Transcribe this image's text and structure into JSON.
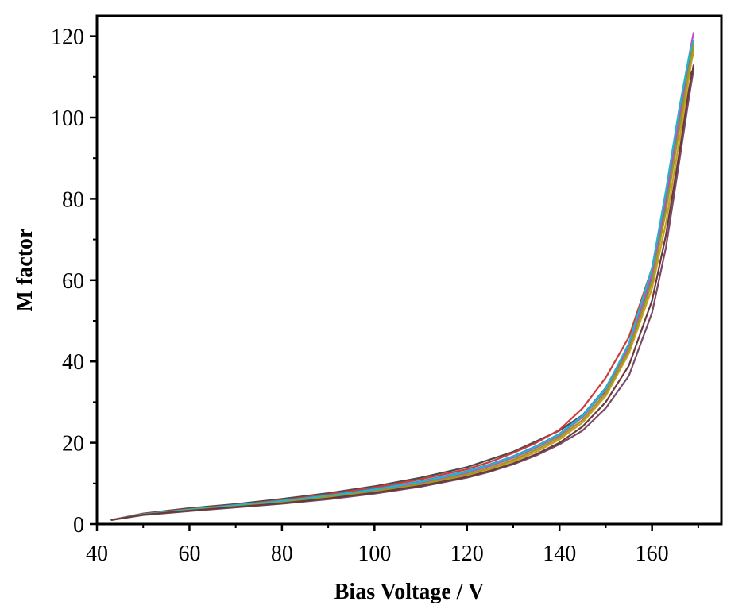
{
  "chart_data": {
    "type": "line",
    "title": "",
    "xlabel": "Bias Voltage  / V",
    "ylabel": "M factor",
    "xlim": [
      40,
      175
    ],
    "ylim": [
      0,
      125
    ],
    "xticks": [
      40,
      60,
      80,
      100,
      120,
      140,
      160
    ],
    "yticks": [
      0,
      20,
      40,
      60,
      80,
      100,
      120
    ],
    "grid": false,
    "legend": "none",
    "series": [
      {
        "color": "#4a4a4a",
        "x": [
          43,
          50,
          60,
          70,
          80,
          90,
          100,
          110,
          120,
          125,
          130,
          135,
          140,
          145,
          150,
          155,
          160,
          163,
          166,
          168,
          169
        ],
        "y": [
          1.0,
          2.6,
          3.9,
          4.9,
          6.2,
          7.6,
          9.3,
          11.4,
          14.0,
          15.9,
          17.8,
          20.4,
          23.0,
          26.8,
          32.8,
          44.0,
          61.0,
          78.0,
          98.0,
          110.0,
          112.0
        ]
      },
      {
        "color": "#d03a3a",
        "x": [
          43,
          50,
          60,
          70,
          80,
          90,
          100,
          110,
          120,
          125,
          130,
          135,
          140,
          145,
          150,
          155,
          160,
          163,
          166,
          168,
          169
        ],
        "y": [
          1.0,
          2.5,
          3.7,
          4.7,
          5.9,
          7.3,
          9.0,
          11.0,
          13.5,
          15.3,
          17.5,
          20.0,
          23.2,
          28.5,
          36.0,
          46.0,
          63.0,
          80.0,
          100.0,
          112.0,
          116.0
        ]
      },
      {
        "color": "#2e9a4a",
        "x": [
          43,
          50,
          60,
          70,
          80,
          90,
          100,
          110,
          120,
          125,
          130,
          135,
          140,
          145,
          150,
          155,
          160,
          163,
          166,
          168,
          169
        ],
        "y": [
          1.0,
          2.4,
          3.5,
          4.5,
          5.6,
          6.9,
          8.4,
          10.3,
          12.8,
          14.5,
          16.5,
          19.0,
          22.0,
          26.5,
          33.0,
          43.0,
          61.0,
          79.0,
          100.0,
          113.0,
          118.0
        ]
      },
      {
        "color": "#3a6fd0",
        "x": [
          43,
          50,
          60,
          70,
          80,
          90,
          100,
          110,
          120,
          125,
          130,
          135,
          140,
          145,
          150,
          155,
          160,
          163,
          166,
          168,
          169
        ],
        "y": [
          1.0,
          2.4,
          3.6,
          4.6,
          5.7,
          7.0,
          8.6,
          10.5,
          13.0,
          14.7,
          16.7,
          19.2,
          22.2,
          26.8,
          33.5,
          44.0,
          62.0,
          80.0,
          101.0,
          114.0,
          119.0
        ]
      },
      {
        "color": "#c050c0",
        "x": [
          43,
          50,
          60,
          70,
          80,
          90,
          100,
          110,
          120,
          125,
          130,
          135,
          140,
          145,
          150,
          155,
          160,
          163,
          166,
          168,
          169
        ],
        "y": [
          1.0,
          2.3,
          3.4,
          4.4,
          5.5,
          6.8,
          8.3,
          10.2,
          12.6,
          14.3,
          16.3,
          18.8,
          21.8,
          26.3,
          33.0,
          43.5,
          61.5,
          80.0,
          101.0,
          115.0,
          121.0
        ]
      },
      {
        "color": "#c8a020",
        "x": [
          43,
          50,
          60,
          70,
          80,
          90,
          100,
          110,
          120,
          125,
          130,
          135,
          140,
          145,
          150,
          155,
          160,
          163,
          166,
          168,
          169
        ],
        "y": [
          1.0,
          2.3,
          3.3,
          4.2,
          5.2,
          6.4,
          7.8,
          9.6,
          11.9,
          13.5,
          15.4,
          17.8,
          20.8,
          25.0,
          31.5,
          42.0,
          58.0,
          74.0,
          95.0,
          110.0,
          117.0
        ]
      },
      {
        "color": "#20b8c8",
        "x": [
          43,
          50,
          60,
          70,
          80,
          90,
          100,
          110,
          120,
          125,
          130,
          135,
          140,
          145,
          150,
          155,
          160,
          163,
          166,
          168,
          169
        ],
        "y": [
          1.0,
          2.4,
          3.6,
          4.6,
          5.7,
          7.0,
          8.5,
          10.4,
          12.9,
          14.6,
          16.6,
          19.1,
          22.1,
          26.6,
          33.3,
          44.5,
          63.0,
          82.0,
          103.0,
          115.0,
          119.0
        ]
      },
      {
        "color": "#7a4a6a",
        "x": [
          43,
          50,
          60,
          70,
          80,
          90,
          100,
          110,
          120,
          125,
          130,
          135,
          140,
          145,
          150,
          155,
          160,
          163,
          166,
          168,
          169
        ],
        "y": [
          1.0,
          2.2,
          3.2,
          4.1,
          5.0,
          6.1,
          7.5,
          9.2,
          11.4,
          12.9,
          14.7,
          16.9,
          19.6,
          23.0,
          28.5,
          36.5,
          52.0,
          68.0,
          90.0,
          105.0,
          112.0
        ]
      },
      {
        "color": "#9a9a20",
        "x": [
          43,
          50,
          60,
          70,
          80,
          90,
          100,
          110,
          120,
          125,
          130,
          135,
          140,
          145,
          150,
          155,
          160,
          163,
          166,
          168,
          169
        ],
        "y": [
          1.0,
          2.3,
          3.4,
          4.3,
          5.3,
          6.6,
          8.0,
          9.8,
          12.2,
          13.8,
          15.8,
          18.3,
          21.3,
          25.6,
          32.2,
          42.8,
          59.5,
          77.0,
          98.0,
          112.0,
          118.0
        ]
      },
      {
        "color": "#6a3a3a",
        "x": [
          43,
          50,
          60,
          70,
          80,
          90,
          100,
          110,
          120,
          125,
          130,
          135,
          140,
          145,
          150,
          155,
          160,
          163,
          166,
          168,
          169
        ],
        "y": [
          1.0,
          2.3,
          3.3,
          4.2,
          5.1,
          6.3,
          7.7,
          9.4,
          11.6,
          13.1,
          14.9,
          17.2,
          20.0,
          24.0,
          30.0,
          39.0,
          55.0,
          71.0,
          92.0,
          107.0,
          113.0
        ]
      }
    ]
  }
}
